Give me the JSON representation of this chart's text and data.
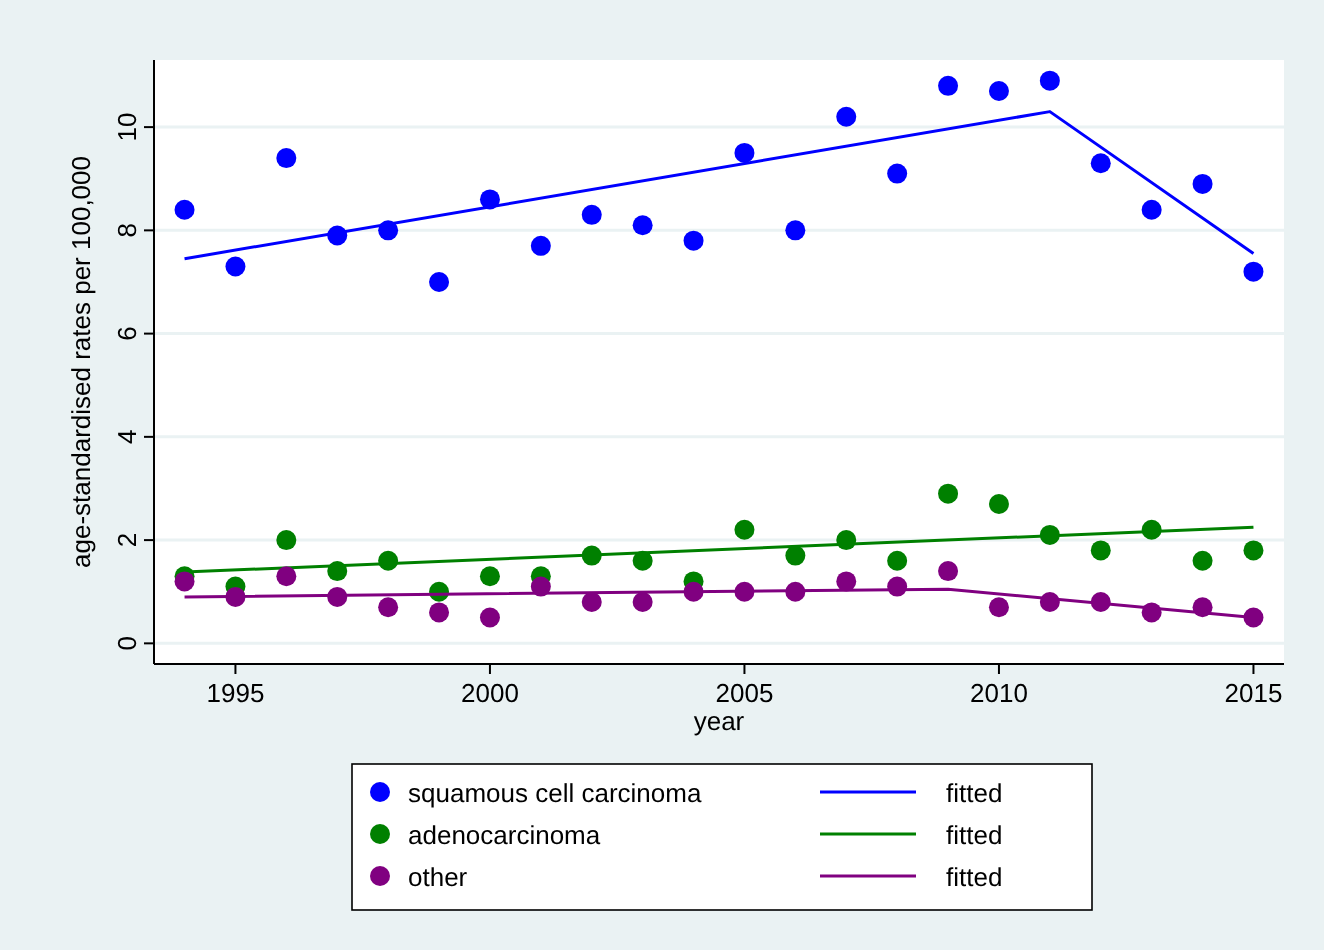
{
  "chart_data": {
    "type": "scatter",
    "xlabel": "year",
    "ylabel": "age-standardised rates per 100,000",
    "xlim": [
      1993.4,
      2015.6
    ],
    "ylim": [
      -0.4,
      11.3
    ],
    "xticks": [
      1995,
      2000,
      2005,
      2010,
      2015
    ],
    "yticks": [
      0,
      2,
      4,
      6,
      8,
      10
    ],
    "grid": "y",
    "legend": "bottom",
    "marker": "circle",
    "x": [
      1994,
      1995,
      1996,
      1997,
      1998,
      1999,
      2000,
      2001,
      2002,
      2003,
      2004,
      2005,
      2006,
      2007,
      2008,
      2009,
      2010,
      2011,
      2012,
      2013,
      2014,
      2015
    ],
    "series": [
      {
        "name": "squamous cell carcinoma",
        "color": "#0000ff",
        "values": [
          8.4,
          7.3,
          9.4,
          7.9,
          8.0,
          7.0,
          8.6,
          7.7,
          8.3,
          8.1,
          7.8,
          9.5,
          8.0,
          10.2,
          9.1,
          10.8,
          10.7,
          10.9,
          9.3,
          8.4,
          8.9,
          7.2
        ]
      },
      {
        "name": "fitted",
        "type": "line",
        "color": "#0000ff",
        "marker": "none",
        "x": [
          1994,
          2011,
          2015
        ],
        "values": [
          7.45,
          10.3,
          7.55
        ]
      },
      {
        "name": "adenocarcinoma",
        "color": "#008000",
        "values": [
          1.3,
          1.1,
          2.0,
          1.4,
          1.6,
          1.0,
          1.3,
          1.3,
          1.7,
          1.6,
          1.2,
          2.2,
          1.7,
          2.0,
          1.6,
          2.9,
          2.7,
          2.1,
          1.8,
          2.2,
          1.6,
          1.8
        ]
      },
      {
        "name": "fitted",
        "type": "line",
        "color": "#008000",
        "marker": "none",
        "x": [
          1994,
          2015
        ],
        "values": [
          1.38,
          2.25
        ]
      },
      {
        "name": "other",
        "color": "#800080",
        "values": [
          1.2,
          0.9,
          1.3,
          0.9,
          0.7,
          0.6,
          0.5,
          1.1,
          0.8,
          0.8,
          1.0,
          1.0,
          1.0,
          1.2,
          1.1,
          1.4,
          0.7,
          0.8,
          0.8,
          0.6,
          0.7,
          0.5
        ]
      },
      {
        "name": "fitted",
        "type": "line",
        "color": "#800080",
        "marker": "none",
        "x": [
          1994,
          2009,
          2015
        ],
        "values": [
          0.9,
          1.05,
          0.5
        ]
      }
    ]
  }
}
